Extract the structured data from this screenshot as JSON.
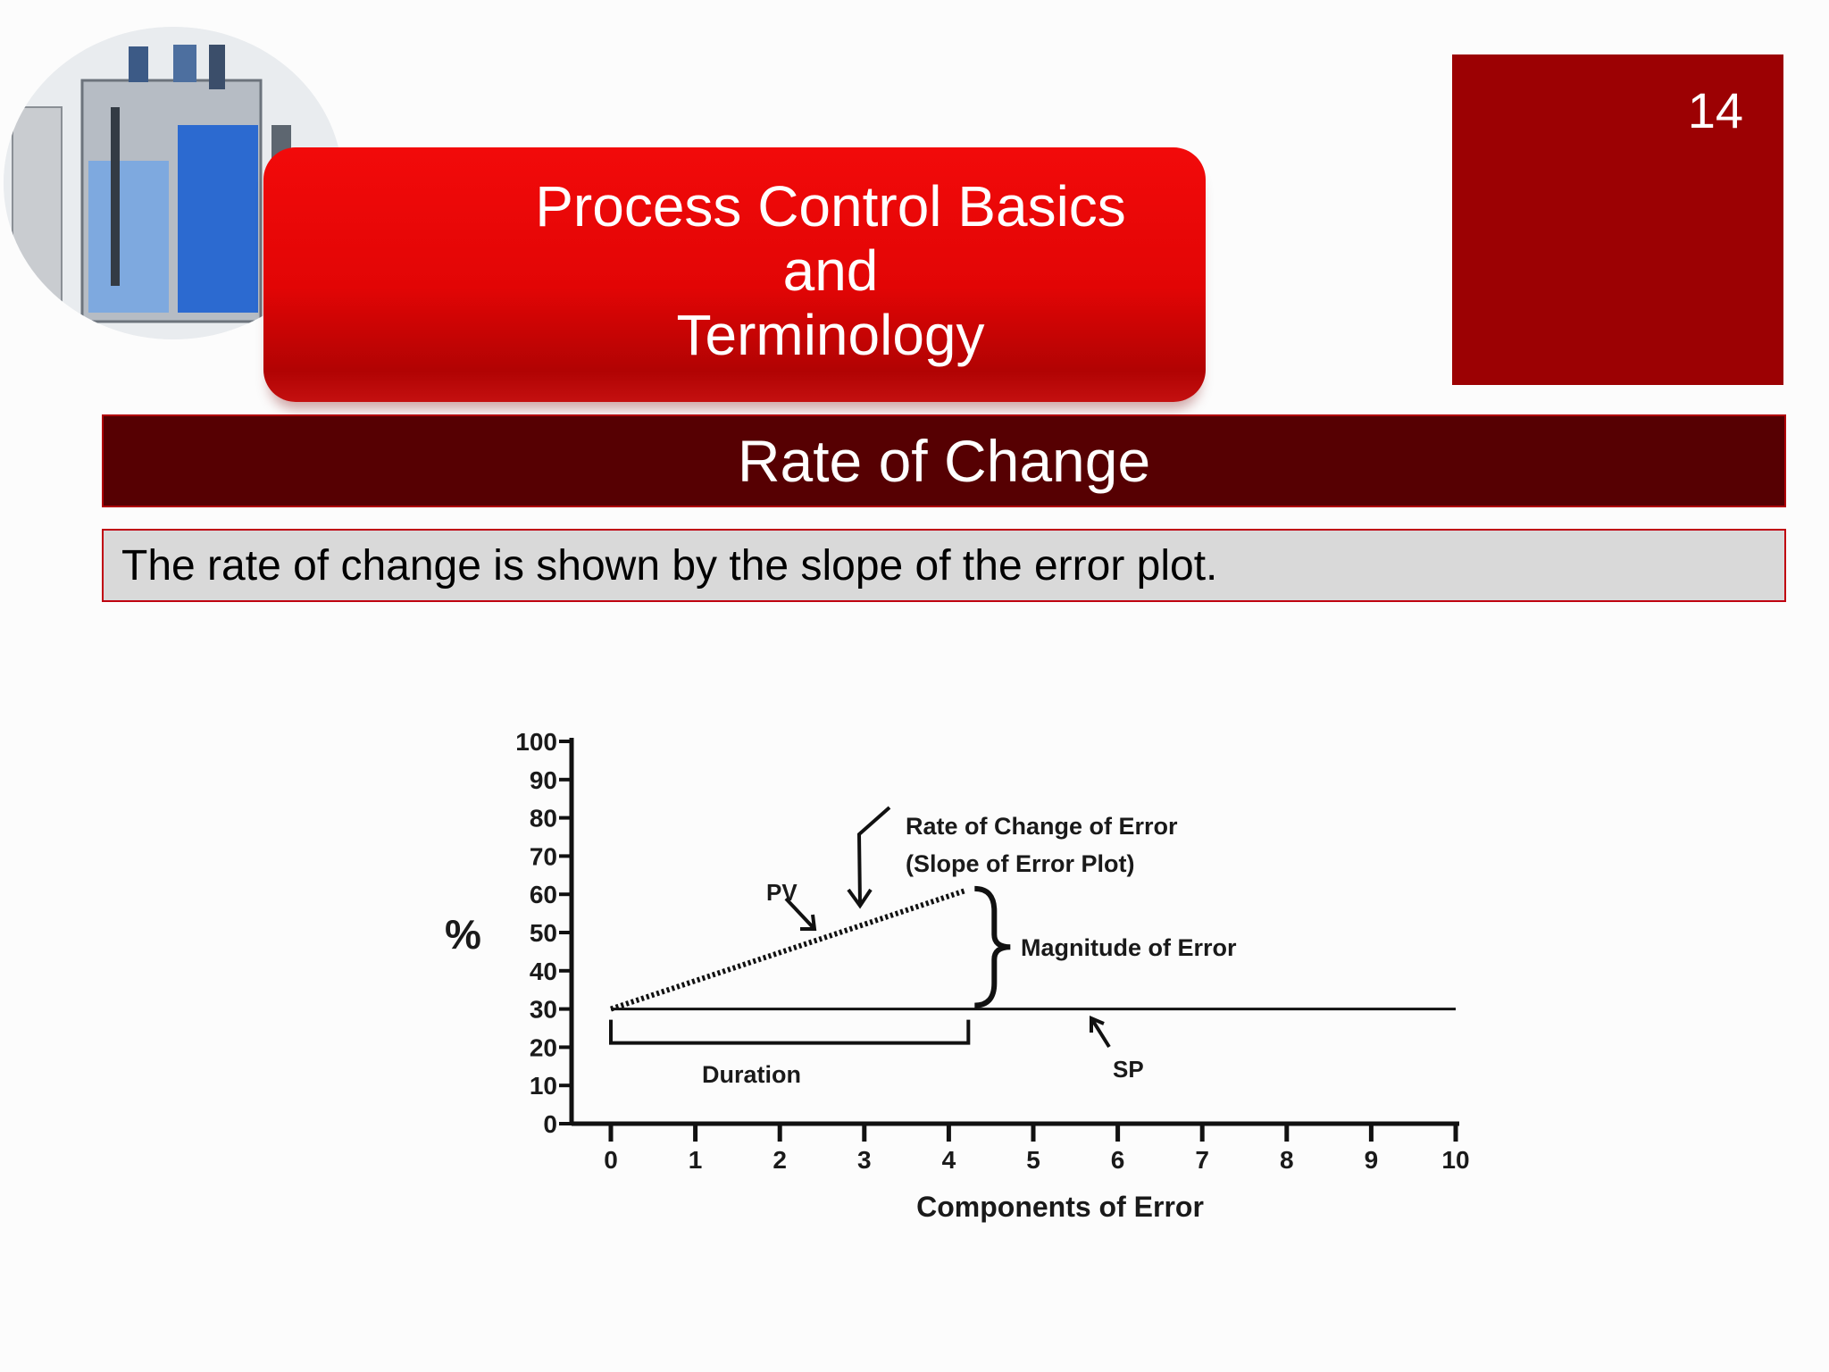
{
  "header": {
    "title_lines": [
      "Process Control Basics",
      "and",
      "Terminology"
    ],
    "page_number": "14"
  },
  "section": {
    "title": "Rate of Change",
    "description": "The rate of change is shown by the slope of the error plot."
  },
  "colors": {
    "title_banner": "#e20505",
    "page_box": "#9c0103",
    "section_bar": "#560002",
    "description_box": "#d9d9d9"
  },
  "logo": {
    "icon": "tank-level-instruments-icon"
  },
  "chart_data": {
    "type": "line",
    "xlabel": "Components of Error",
    "ylabel": "%",
    "xlim": [
      0,
      10
    ],
    "ylim": [
      0,
      100
    ],
    "x_ticks": [
      0,
      1,
      2,
      3,
      4,
      5,
      6,
      7,
      8,
      9,
      10
    ],
    "y_ticks": [
      0,
      10,
      20,
      30,
      40,
      50,
      60,
      70,
      80,
      90,
      100
    ],
    "grid": false,
    "series": [
      {
        "name": "PV",
        "x": [
          0,
          4.2
        ],
        "y": [
          30,
          61
        ],
        "style": "dotted"
      },
      {
        "name": "SP",
        "x": [
          0,
          10
        ],
        "y": [
          30,
          30
        ],
        "style": "solid"
      }
    ],
    "annotations": {
      "pv_label": "PV",
      "sp_label": "SP",
      "rate_label_line1": "Rate of Change of Error",
      "rate_label_line2": "(Slope of Error Plot)",
      "magnitude_label": "Magnitude of Error",
      "duration_label": "Duration",
      "duration_range": [
        0,
        4.2
      ],
      "magnitude_range": [
        30,
        61
      ]
    }
  }
}
